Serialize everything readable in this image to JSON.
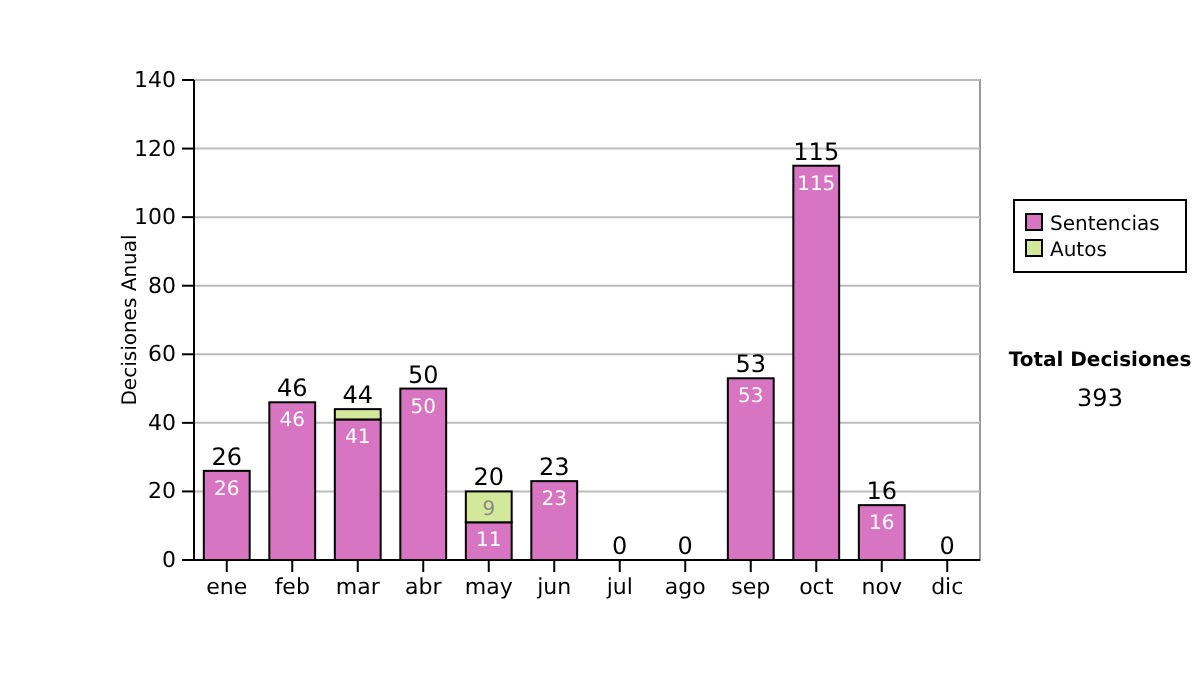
{
  "chart_data": {
    "type": "bar",
    "ylabel": "Decisiones Anual",
    "stacked": true,
    "categories": [
      "ene",
      "feb",
      "mar",
      "abr",
      "may",
      "jun",
      "jul",
      "ago",
      "sep",
      "oct",
      "nov",
      "dic"
    ],
    "series": [
      {
        "name": "Sentencias",
        "color": "#d875c2",
        "values": [
          26,
          46,
          41,
          50,
          11,
          23,
          0,
          0,
          53,
          115,
          16,
          0
        ],
        "value_labels": [
          "26",
          "46",
          "41",
          "50",
          "11",
          "23",
          null,
          null,
          "53",
          "115",
          "16",
          null
        ]
      },
      {
        "name": "Autos",
        "color": "#d4e89a",
        "values": [
          0,
          0,
          3,
          0,
          9,
          0,
          0,
          0,
          0,
          0,
          0,
          0
        ],
        "value_labels": [
          null,
          null,
          null,
          null,
          "9",
          null,
          null,
          null,
          null,
          null,
          null,
          null
        ]
      }
    ],
    "totals": [
      "26",
      "46",
      "44",
      "50",
      "20",
      "23",
      "0",
      "0",
      "53",
      "115",
      "16",
      "0"
    ],
    "ylim": [
      0,
      140
    ],
    "yticks": [
      0,
      20,
      40,
      60,
      80,
      100,
      120,
      140
    ],
    "grid": "y",
    "legend": "right",
    "annotations": [
      "Total Decisiones",
      "393"
    ]
  }
}
